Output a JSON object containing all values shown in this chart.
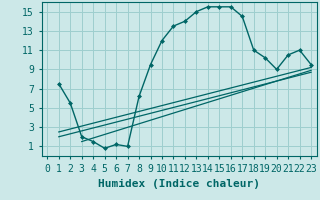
{
  "title": "",
  "xlabel": "Humidex (Indice chaleur)",
  "bg_color": "#cce8e8",
  "grid_color": "#9ecece",
  "line_color": "#006666",
  "xlim": [
    -0.5,
    23.5
  ],
  "ylim": [
    0,
    16
  ],
  "xticks": [
    0,
    1,
    2,
    3,
    4,
    5,
    6,
    7,
    8,
    9,
    10,
    11,
    12,
    13,
    14,
    15,
    16,
    17,
    18,
    19,
    20,
    21,
    22,
    23
  ],
  "yticks": [
    1,
    3,
    5,
    7,
    9,
    11,
    13,
    15
  ],
  "main_curve_x": [
    1,
    2,
    3,
    4,
    5,
    6,
    7,
    8,
    9,
    10,
    11,
    12,
    13,
    14,
    15,
    16,
    17,
    18,
    19,
    20,
    21,
    22,
    23
  ],
  "main_curve_y": [
    7.5,
    5.5,
    2.0,
    1.5,
    0.8,
    1.2,
    1.0,
    6.2,
    9.5,
    12.0,
    13.5,
    14.0,
    15.0,
    15.5,
    15.5,
    15.5,
    14.5,
    11.0,
    10.2,
    9.0,
    10.5,
    11.0,
    9.5
  ],
  "line2_x": [
    1,
    23
  ],
  "line2_y": [
    2.5,
    9.2
  ],
  "line3_x": [
    1,
    23
  ],
  "line3_y": [
    2.0,
    8.7
  ],
  "line4_x": [
    3,
    23
  ],
  "line4_y": [
    1.5,
    8.9
  ],
  "tick_fontsize": 7,
  "xlabel_fontsize": 8
}
